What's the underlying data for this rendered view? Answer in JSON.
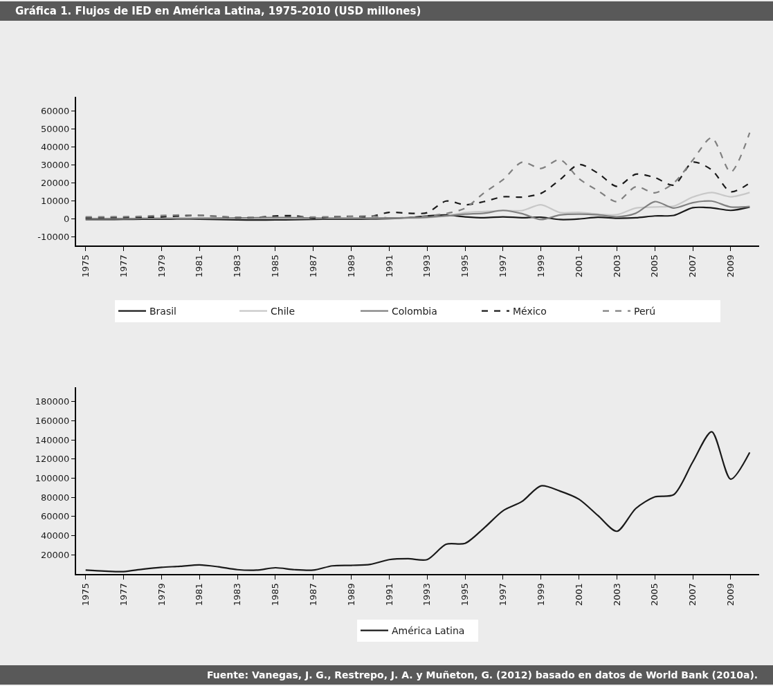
{
  "chart_data": [
    {
      "type": "line",
      "title": "Gráfica 1. Flujos de IED en América Latina, 1975-2010 (USD millones)",
      "x": [
        1975,
        1976,
        1977,
        1978,
        1979,
        1980,
        1981,
        1982,
        1983,
        1984,
        1985,
        1986,
        1987,
        1988,
        1989,
        1990,
        1991,
        1992,
        1993,
        1994,
        1995,
        1996,
        1997,
        1998,
        1999,
        2000,
        2001,
        2002,
        2003,
        2004,
        2005,
        2006,
        2007,
        2008,
        2009,
        2010
      ],
      "xlim": [
        1974.5,
        2010.5
      ],
      "xticks": [
        1975,
        1977,
        1979,
        1981,
        1983,
        1985,
        1987,
        1989,
        1991,
        1993,
        1995,
        1997,
        1999,
        2001,
        2003,
        2005,
        2007,
        2009
      ],
      "ylim": [
        -15000,
        68000
      ],
      "yticks": [
        -10000,
        0,
        10000,
        20000,
        30000,
        40000,
        50000,
        60000
      ],
      "grid": false,
      "legend": "bottom",
      "series": [
        {
          "name": "Brasil",
          "color": "#1a1a1a",
          "line_style": "solid",
          "values": [
            -500,
            -500,
            -400,
            -300,
            -300,
            -200,
            -300,
            -500,
            -700,
            -800,
            -700,
            -600,
            -400,
            -300,
            -300,
            -200,
            0,
            500,
            1500,
            2000,
            1000,
            500,
            1000,
            500,
            800,
            -500,
            -200,
            800,
            200,
            500,
            1500,
            1800,
            6100,
            6000,
            4600,
            6500
          ]
        },
        {
          "name": "Chile",
          "color": "#c8c8c8",
          "line_style": "solid",
          "values": [
            0,
            0,
            0,
            100,
            200,
            200,
            300,
            300,
            200,
            100,
            100,
            100,
            200,
            300,
            300,
            300,
            300,
            300,
            500,
            1500,
            3400,
            4000,
            4500,
            4500,
            7700,
            3400,
            3500,
            2500,
            2200,
            5900,
            6500,
            7000,
            12000,
            14600,
            12200,
            14600
          ]
        },
        {
          "name": "Colombia",
          "color": "#808080",
          "line_style": "solid",
          "values": [
            0,
            0,
            0,
            100,
            100,
            100,
            200,
            300,
            400,
            500,
            600,
            500,
            300,
            200,
            200,
            300,
            400,
            500,
            800,
            1500,
            2500,
            3000,
            4600,
            2800,
            -500,
            2000,
            2500,
            2100,
            1000,
            3000,
            9500,
            5900,
            8900,
            9800,
            6500,
            6800
          ]
        },
        {
          "name": "México",
          "color": "#1a1a1a",
          "line_style": "dashed",
          "values": [
            500,
            600,
            700,
            800,
            1000,
            1500,
            1800,
            1200,
            500,
            600,
            1500,
            1600,
            300,
            1000,
            1300,
            1200,
            3500,
            3000,
            3300,
            9800,
            7700,
            9500,
            12200,
            12000,
            14100,
            21700,
            30200,
            25400,
            18000,
            24800,
            22900,
            18700,
            31500,
            27200,
            15000,
            19900
          ]
        },
        {
          "name": "Perú",
          "color": "#808080",
          "line_style": "dashed",
          "values": [
            1000,
            1000,
            1100,
            1300,
            1800,
            2000,
            1800,
            1200,
            800,
            700,
            700,
            800,
            900,
            1000,
            1200,
            1500,
            400,
            600,
            1500,
            2800,
            5800,
            14400,
            21700,
            31500,
            28000,
            32900,
            22300,
            15600,
            9500,
            17800,
            14400,
            19900,
            32700,
            45100,
            26000,
            48000
          ]
        }
      ]
    },
    {
      "type": "line",
      "x": [
        1975,
        1976,
        1977,
        1978,
        1979,
        1980,
        1981,
        1982,
        1983,
        1984,
        1985,
        1986,
        1987,
        1988,
        1989,
        1990,
        1991,
        1992,
        1993,
        1994,
        1995,
        1996,
        1997,
        1998,
        1999,
        2000,
        2001,
        2002,
        2003,
        2004,
        2005,
        2006,
        2007,
        2008,
        2009,
        2010
      ],
      "xlim": [
        1974.5,
        2010.5
      ],
      "xticks": [
        1975,
        1977,
        1979,
        1981,
        1983,
        1985,
        1987,
        1989,
        1991,
        1993,
        1995,
        1997,
        1999,
        2001,
        2003,
        2005,
        2007,
        2009
      ],
      "ylim": [
        0,
        195000
      ],
      "yticks": [
        20000,
        40000,
        60000,
        80000,
        100000,
        120000,
        140000,
        160000,
        180000
      ],
      "grid": false,
      "legend": "bottom",
      "series": [
        {
          "name": "América Latina",
          "color": "#1a1a1a",
          "line_style": "solid",
          "values": [
            4000,
            3000,
            2500,
            5000,
            7000,
            8000,
            9500,
            7500,
            4500,
            4000,
            6500,
            4500,
            4000,
            8500,
            9000,
            10000,
            15000,
            16000,
            15000,
            31000,
            32000,
            48000,
            66000,
            75700,
            92000,
            86600,
            78100,
            61100,
            44600,
            68400,
            80500,
            82900,
            117000,
            148500,
            99000,
            126900
          ]
        }
      ],
      "annotations": [
        "Fuente: Vanegas, J. G., Restrepo, J. A. y Muñeton, G. (2012) basado en datos de World Bank (2010a)."
      ]
    }
  ]
}
